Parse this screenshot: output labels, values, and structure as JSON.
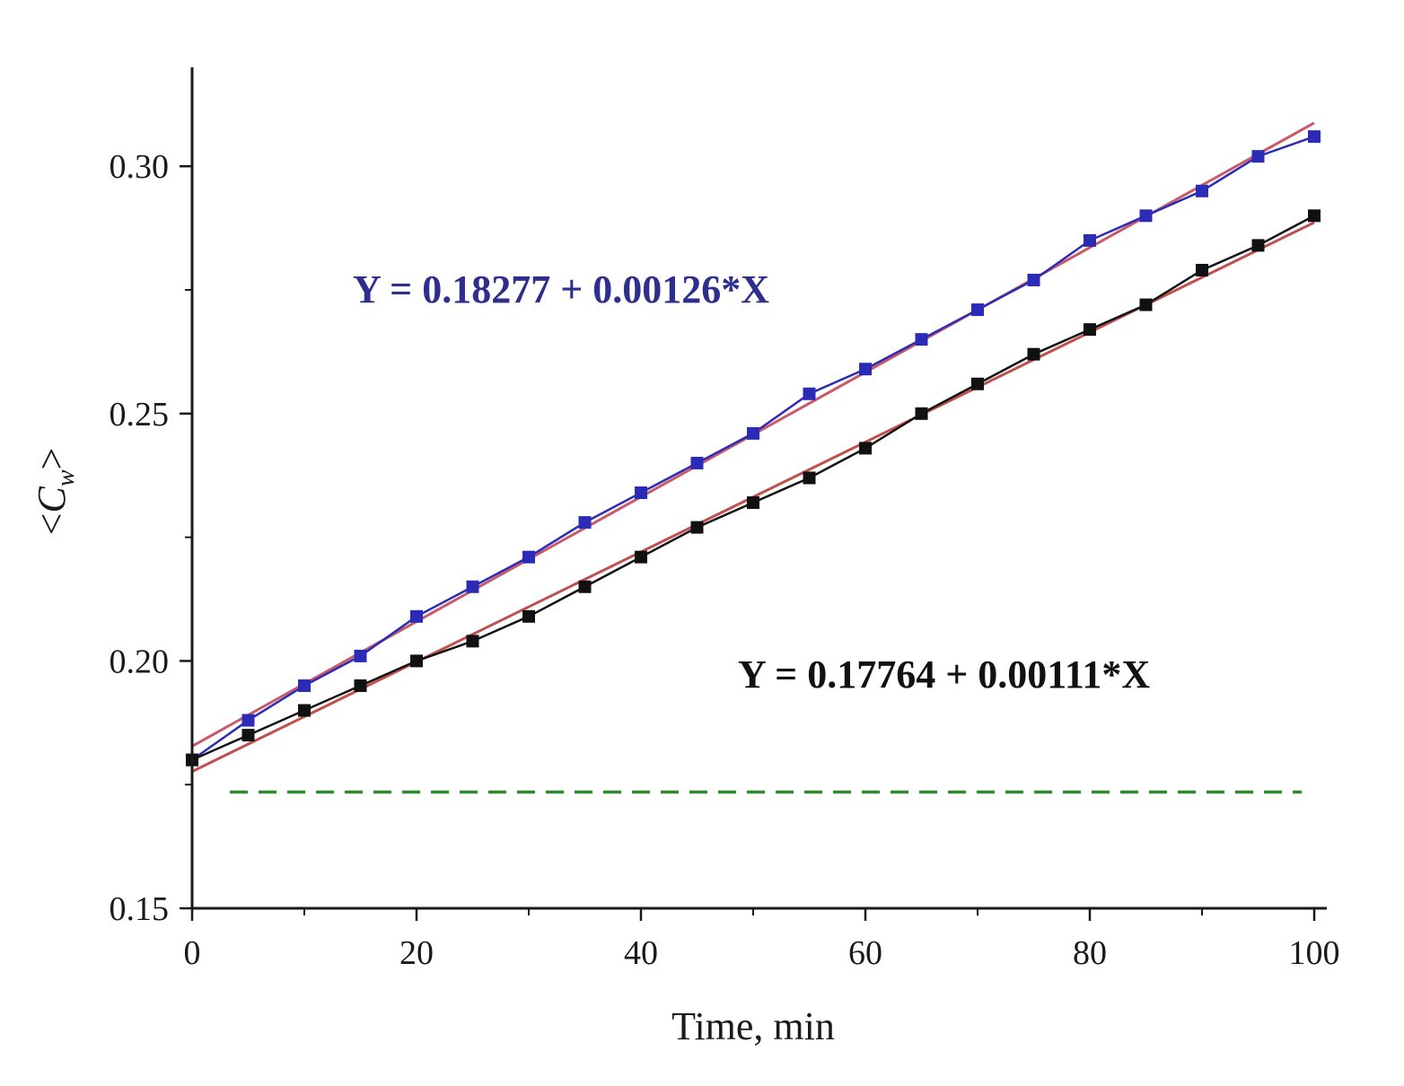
{
  "chart_data": {
    "type": "line",
    "title": "",
    "xlabel": "Time, min",
    "ylabel": {
      "open": "<",
      "symbol": "C",
      "subscript": "w",
      "close": ">"
    },
    "xlim": [
      0,
      100
    ],
    "ylim": [
      0.15,
      0.32
    ],
    "x_ticks": [
      0,
      20,
      40,
      60,
      80,
      100
    ],
    "x_tick_labels": [
      "0",
      "20",
      "40",
      "60",
      "80",
      "100"
    ],
    "x_minor_ticks": [
      10,
      30,
      50,
      70,
      90
    ],
    "y_ticks": [
      0.15,
      0.2,
      0.25,
      0.3
    ],
    "y_tick_labels": [
      "0.15",
      "0.20",
      "0.25",
      "0.30"
    ],
    "y_minor_ticks": [
      0.175,
      0.225,
      0.275
    ],
    "grid": false,
    "x": [
      0,
      5,
      10,
      15,
      20,
      25,
      30,
      35,
      40,
      45,
      50,
      55,
      60,
      65,
      70,
      75,
      80,
      85,
      90,
      95,
      100
    ],
    "series": [
      {
        "name": "blue",
        "color": "#2b2bb8",
        "marker": "square",
        "values": [
          0.18,
          0.188,
          0.195,
          0.201,
          0.209,
          0.215,
          0.221,
          0.228,
          0.234,
          0.24,
          0.246,
          0.254,
          0.259,
          0.265,
          0.271,
          0.277,
          0.285,
          0.29,
          0.295,
          0.302,
          0.306
        ],
        "fit": {
          "intercept": 0.18277,
          "slope": 0.00126,
          "color": "#c85a6a",
          "label": "Y = 0.18277 + 0.00126*X",
          "label_color": "#2e2e8c"
        }
      },
      {
        "name": "black",
        "color": "#111111",
        "marker": "square",
        "values": [
          0.18,
          0.185,
          0.19,
          0.195,
          0.2,
          0.204,
          0.209,
          0.215,
          0.221,
          0.227,
          0.232,
          0.237,
          0.243,
          0.25,
          0.256,
          0.262,
          0.267,
          0.272,
          0.279,
          0.284,
          0.29
        ],
        "fit": {
          "intercept": 0.17764,
          "slope": 0.00111,
          "color": "#c0504d",
          "label": "Y = 0.17764 + 0.00111*X",
          "label_color": "#111111"
        }
      }
    ],
    "reference_line": {
      "y": 0.1735,
      "x_range": [
        0,
        100
      ],
      "color": "#2e8b2e",
      "style": "dashed"
    }
  }
}
